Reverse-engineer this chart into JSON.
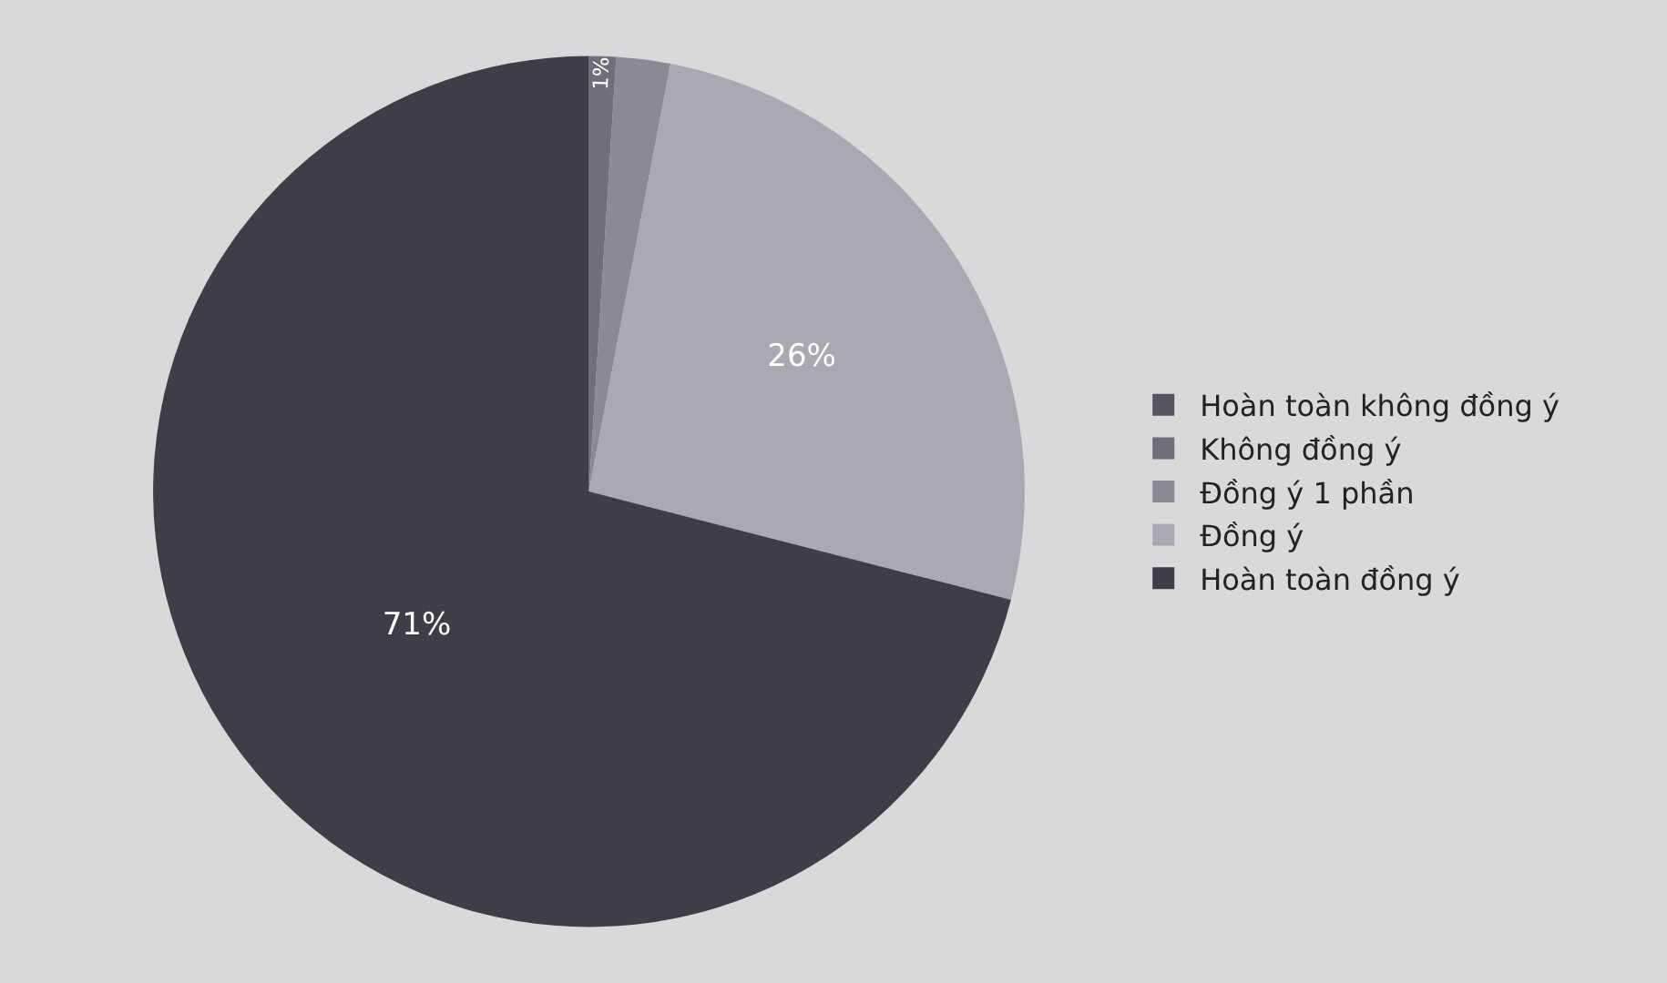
{
  "chart_data": {
    "type": "pie",
    "categories": [
      "Hoàn toàn không đồng ý",
      "Không đồng ý",
      "Đồng ý 1 phần",
      "Đồng ý",
      "Hoàn toàn đồng ý"
    ],
    "values": [
      0,
      1,
      2,
      26,
      71
    ],
    "colors": [
      "#55555f",
      "#6f6f7a",
      "#8b8a94",
      "#aaa9b2",
      "#3e3e47"
    ],
    "value_labels": [
      null,
      "1%",
      null,
      "26%",
      "71%"
    ],
    "legend": "right"
  }
}
